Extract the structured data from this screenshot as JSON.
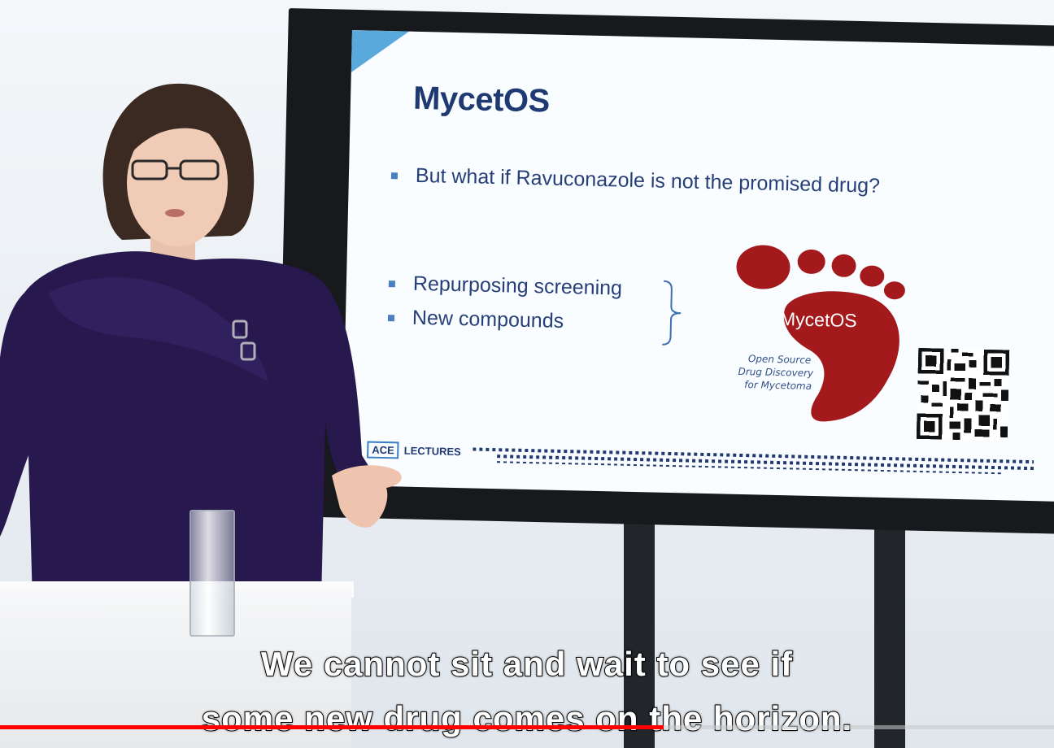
{
  "slide": {
    "title": "MycetOS",
    "bullet_main": "But what if Ravuconazole is not the promised drug?",
    "bullets_grouped": [
      "Repurposing screening",
      "New compounds"
    ],
    "logo": {
      "name": "MycetOS",
      "tagline": [
        "Open Source",
        "Drug Discovery",
        "for Mycetoma"
      ],
      "color": "#a3191c"
    },
    "footer_brand": [
      "ACE",
      "LECTURES"
    ]
  },
  "subtitles": [
    "We cannot sit and wait to see if",
    "some new drug comes on the horizon."
  ],
  "player": {
    "progress": 0.63,
    "progress_color": "#ff0000"
  }
}
